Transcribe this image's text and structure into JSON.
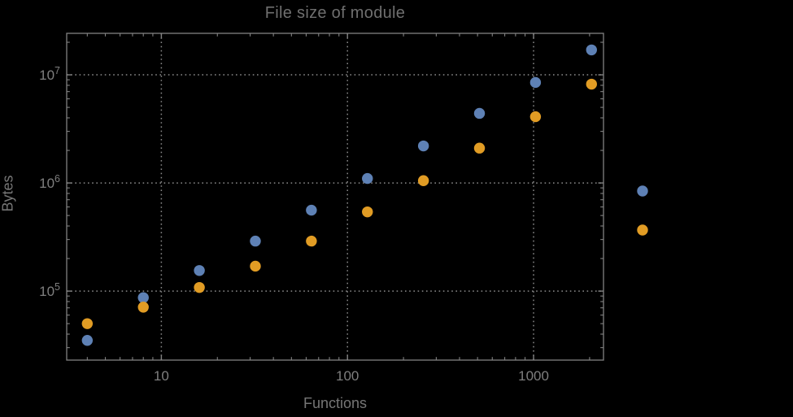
{
  "window": {
    "background_color": "#000000"
  },
  "chart_data": {
    "type": "scatter",
    "title": "File size of module",
    "xlabel": "Functions",
    "ylabel": "Bytes",
    "x_scale": "log",
    "y_scale": "log",
    "xlim": [
      3.1,
      2375
    ],
    "ylim": [
      23000,
      24200000
    ],
    "grid": true,
    "grid_style": "dotted",
    "x_tick_labels": [
      {
        "value": 10,
        "label": "10"
      },
      {
        "value": 100,
        "label": "100"
      },
      {
        "value": 1000,
        "label": "1000"
      }
    ],
    "y_tick_labels": [
      {
        "value": 100000,
        "base": "10",
        "exp": "5"
      },
      {
        "value": 1000000,
        "base": "10",
        "exp": "6"
      },
      {
        "value": 10000000,
        "base": "10",
        "exp": "7"
      }
    ],
    "x": [
      4,
      8,
      16,
      32,
      64,
      128,
      256,
      512,
      1024,
      2048
    ],
    "series": [
      {
        "name": "blue",
        "color": "#5E81B5",
        "values": [
          35000,
          87000,
          155000,
          290000,
          560000,
          1100000,
          2200000,
          4400000,
          8500000,
          17000000
        ]
      },
      {
        "name": "orange",
        "color": "#E19C24",
        "values": [
          50000,
          71000,
          108000,
          170000,
          290000,
          540000,
          1050000,
          2100000,
          4100000,
          8200000
        ]
      }
    ],
    "legend": {
      "position": "right-outside",
      "markers": [
        {
          "name": "blue",
          "color": "#5E81B5",
          "label": ""
        },
        {
          "name": "orange",
          "color": "#E19C24",
          "label": ""
        }
      ]
    }
  },
  "styles": {
    "frame_color": "#828282",
    "grid_color": "#8a8a8a",
    "tick_color": "#828282",
    "title_color": "#6f6f6f",
    "label_color": "#767676",
    "tick_label_color": "#7f7f7f"
  }
}
